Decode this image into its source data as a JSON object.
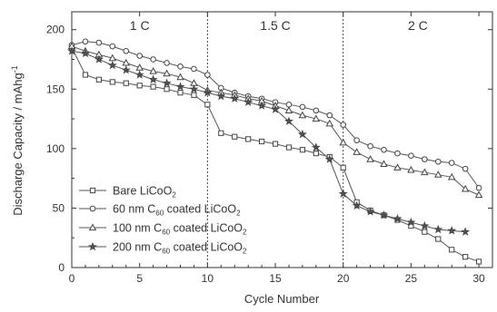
{
  "chart_data": {
    "type": "line",
    "xlabel": "Cycle Number",
    "ylabel": "Discharge Capacity / mAhg",
    "ylabel_sup": "-1",
    "xlim": [
      0,
      31
    ],
    "ylim": [
      0,
      215
    ],
    "x_ticks": [
      0,
      5,
      10,
      15,
      20,
      25,
      30
    ],
    "y_ticks": [
      0,
      50,
      100,
      150,
      200
    ],
    "grid": false,
    "legend_position": "lower-left",
    "dividers": [
      10,
      20
    ],
    "regions": [
      {
        "label": "1 C",
        "x_center": 5
      },
      {
        "label": "1.5 C",
        "x_center": 15
      },
      {
        "label": "2 C",
        "x_center": 25.5
      }
    ],
    "series": [
      {
        "legend": {
          "pre": "Bare LiCoO",
          "sub": "2",
          "mid": "",
          "sub2": "",
          "post": ""
        },
        "marker": "square",
        "x": [
          0,
          1,
          2,
          3,
          4,
          5,
          6,
          7,
          8,
          9,
          10,
          11,
          12,
          13,
          14,
          15,
          16,
          17,
          18,
          19,
          20,
          21,
          22,
          23,
          24,
          25,
          26,
          27,
          28,
          29,
          30
        ],
        "values": [
          185,
          162,
          158,
          156,
          155,
          153,
          152,
          150,
          147,
          145,
          137,
          113,
          110,
          108,
          106,
          104,
          101,
          99,
          96,
          93,
          84,
          55,
          48,
          44,
          40,
          35,
          30,
          24,
          15,
          9,
          5
        ]
      },
      {
        "legend": {
          "pre": "60 nm C",
          "sub": "60",
          "mid": " coated LiCoO",
          "sub2": "2",
          "post": ""
        },
        "marker": "circle",
        "x": [
          0,
          1,
          2,
          3,
          4,
          5,
          6,
          7,
          8,
          9,
          10,
          11,
          12,
          13,
          14,
          15,
          16,
          17,
          18,
          19,
          20,
          21,
          22,
          23,
          24,
          25,
          26,
          27,
          28,
          29,
          30
        ],
        "values": [
          187,
          190,
          189,
          186,
          182,
          178,
          175,
          172,
          169,
          167,
          162,
          151,
          147,
          144,
          142,
          139,
          137,
          135,
          132,
          128,
          120,
          107,
          102,
          99,
          96,
          94,
          91,
          89,
          88,
          83,
          67
        ]
      },
      {
        "legend": {
          "pre": "100 nm C",
          "sub": "60",
          "mid": " coated LiCoO",
          "sub2": "2",
          "post": ""
        },
        "marker": "triangle",
        "x": [
          0,
          1,
          2,
          3,
          4,
          5,
          6,
          7,
          8,
          9,
          10,
          11,
          12,
          13,
          14,
          15,
          16,
          17,
          18,
          19,
          20,
          21,
          22,
          23,
          24,
          25,
          26,
          27,
          28,
          29,
          30
        ],
        "values": [
          186,
          182,
          179,
          176,
          172,
          168,
          165,
          163,
          160,
          155,
          149,
          147,
          145,
          142,
          140,
          136,
          132,
          128,
          125,
          121,
          105,
          97,
          91,
          87,
          84,
          82,
          80,
          78,
          76,
          66,
          61
        ]
      },
      {
        "legend": {
          "pre": "200 nm C",
          "sub": "60",
          "mid": " coated LiCoO",
          "sub2": "2",
          "post": ""
        },
        "marker": "star",
        "x": [
          0,
          1,
          2,
          3,
          4,
          5,
          6,
          7,
          8,
          9,
          10,
          11,
          12,
          13,
          14,
          15,
          16,
          17,
          18,
          19,
          20,
          21,
          22,
          23,
          24,
          25,
          26,
          27,
          28,
          29
        ],
        "values": [
          182,
          180,
          175,
          170,
          166,
          162,
          158,
          155,
          152,
          150,
          147,
          144,
          142,
          139,
          136,
          133,
          123,
          112,
          101,
          91,
          62,
          52,
          47,
          44,
          41,
          38,
          35,
          32,
          31,
          30
        ]
      }
    ]
  }
}
